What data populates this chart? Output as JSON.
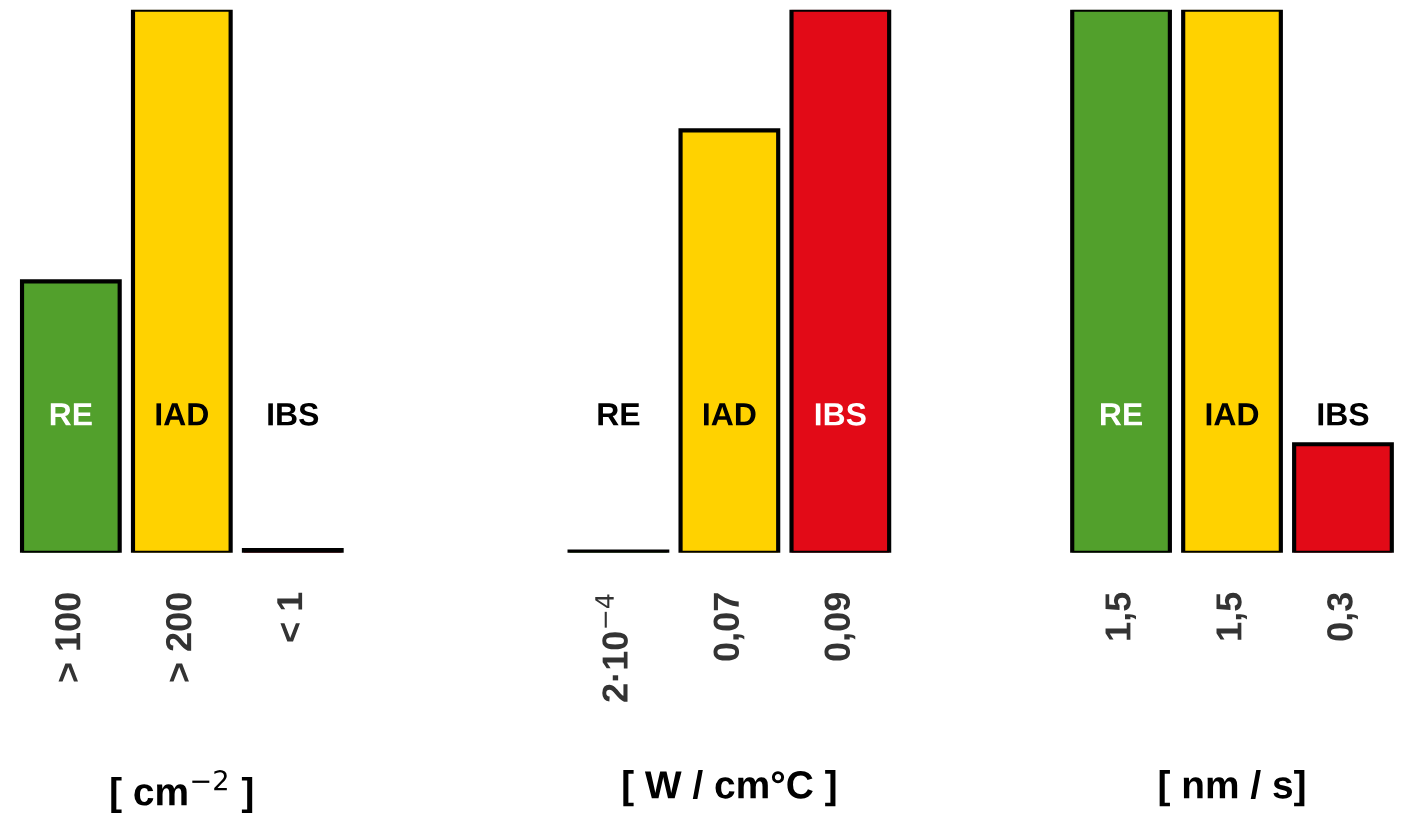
{
  "chart_data": [
    {
      "type": "bar",
      "categories": [
        "RE",
        "IAD",
        "IBS"
      ],
      "values": [
        100,
        200,
        1
      ],
      "colors": [
        "#52a02c",
        "#ffd200",
        "#e20a17"
      ],
      "value_labels": [
        "> 100",
        "> 200",
        "< 1"
      ],
      "xlabel": "[ cm$^{−2}$ ]"
    },
    {
      "type": "bar",
      "categories": [
        "RE",
        "IAD",
        "IBS"
      ],
      "values": [
        0.0002,
        0.07,
        0.09
      ],
      "colors": [
        "#52a02c",
        "#ffd200",
        "#e20a17"
      ],
      "value_labels": [
        "2·10$^{−4}$",
        "0,07",
        "0,09"
      ],
      "xlabel": "[ W / cm°C ]"
    },
    {
      "type": "bar",
      "categories": [
        "RE",
        "IAD",
        "IBS"
      ],
      "values": [
        1.5,
        1.5,
        0.3
      ],
      "colors": [
        "#52a02c",
        "#ffd200",
        "#e20a17"
      ],
      "value_labels": [
        "1,5",
        "1,5",
        "0,3"
      ],
      "xlabel": "[ nm / s]"
    }
  ]
}
